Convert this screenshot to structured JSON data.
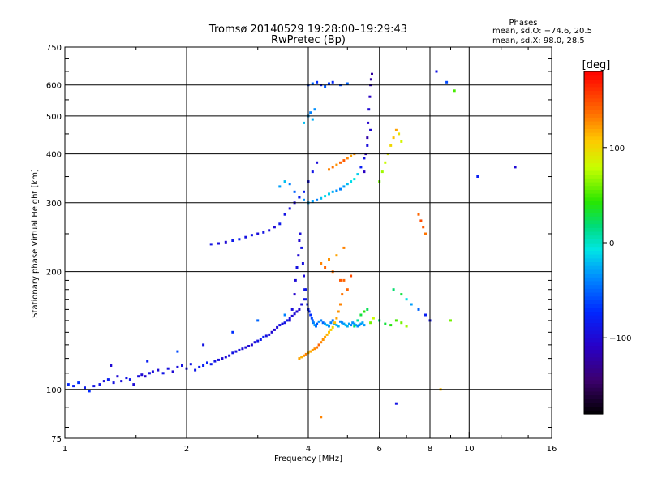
{
  "chart_data": {
    "type": "scatter",
    "title": "Tromsø 20140529 19:28:00–19:29:43",
    "subtitle": "RwPretec (Bp)",
    "stats": {
      "heading": "Phases",
      "line1": "mean, sd,O: −74.6, 20.5",
      "line2": "mean, sd,X:  98.0, 28.5"
    },
    "xlabel": "Frequency [MHz]",
    "ylabel": "Stationary phase Virtual Height [km]",
    "x_scale": "log",
    "y_scale": "log",
    "xlim": [
      1,
      16
    ],
    "ylim": [
      75,
      750
    ],
    "x_ticks": [
      1,
      2,
      4,
      6,
      8,
      10,
      16
    ],
    "x_tick_labels": [
      "1",
      "2",
      "4",
      "6",
      "8",
      "10",
      "16"
    ],
    "x_minor_ticks": [
      1.5,
      3,
      5,
      7,
      9,
      12,
      14
    ],
    "y_ticks": [
      75,
      100,
      200,
      300,
      400,
      500,
      600,
      750
    ],
    "y_tick_labels": [
      "75",
      "100",
      "200",
      "300",
      "400",
      "500",
      "600",
      "750"
    ],
    "grid": true,
    "colorbar": {
      "label": "[deg]",
      "range": [
        -180,
        180
      ],
      "ticks": [
        -100,
        0,
        100
      ],
      "tick_labels": [
        "−100",
        "0",
        "100"
      ],
      "colormap": "rainbow"
    },
    "series": [
      {
        "x": [
          1.02,
          1.05,
          1.08,
          1.12,
          1.15,
          1.18,
          1.22,
          1.25,
          1.28,
          1.32,
          1.35,
          1.38,
          1.42,
          1.45,
          1.48,
          1.52,
          1.55,
          1.58,
          1.62,
          1.65,
          1.7,
          1.75,
          1.8,
          1.85,
          1.9,
          1.95,
          2.0,
          2.05,
          2.1,
          2.15,
          2.2,
          2.25,
          2.3,
          2.35,
          2.4,
          2.45,
          2.5,
          2.55,
          2.6,
          2.65,
          2.7,
          2.75,
          2.8,
          2.85,
          2.9,
          2.95,
          3.0,
          3.05,
          3.1,
          3.15,
          3.2,
          3.25,
          3.3,
          3.35,
          3.4,
          3.45,
          3.5,
          3.55,
          3.6,
          3.65,
          3.7,
          3.75,
          3.8,
          3.85,
          3.9,
          3.95
        ],
        "y": [
          103,
          102,
          104,
          101,
          99,
          102,
          103,
          105,
          106,
          104,
          108,
          105,
          107,
          106,
          103,
          108,
          109,
          108,
          110,
          111,
          112,
          110,
          113,
          111,
          114,
          115,
          113,
          116,
          112,
          114,
          115,
          117,
          116,
          118,
          119,
          120,
          121,
          122,
          124,
          125,
          126,
          127,
          128,
          129,
          130,
          132,
          133,
          134,
          136,
          137,
          138,
          140,
          142,
          144,
          146,
          147,
          148,
          150,
          152,
          154,
          156,
          158,
          160,
          165,
          170,
          180
        ],
        "phase": [
          -75,
          -80,
          -70,
          -85,
          -72,
          -90,
          -88,
          -95,
          -80,
          -92,
          -100,
          -95,
          -90,
          -85,
          -98,
          -95,
          -100,
          -105,
          -92,
          -96,
          -98,
          -88,
          -94,
          -100,
          -95,
          -92,
          -90,
          -88,
          -86,
          -84,
          -80,
          -78,
          -85,
          -90,
          -95,
          -100,
          -98,
          -96,
          -90,
          -92,
          -94,
          -96,
          -98,
          -100,
          -102,
          -96,
          -90,
          -85,
          -80,
          -92,
          -95,
          -100,
          -105,
          -98,
          -94,
          -92,
          -90,
          -88,
          -96,
          -98,
          -100,
          -102,
          -104,
          -95,
          -90,
          -85
        ]
      },
      {
        "x": [
          3.6,
          3.65,
          3.7,
          3.72,
          3.75,
          3.78,
          3.8,
          3.82,
          3.85,
          3.88,
          3.9,
          3.92,
          3.95,
          3.98,
          4.0,
          4.02,
          4.05,
          4.08,
          4.1,
          4.12,
          4.15,
          4.18,
          4.2,
          4.25,
          4.3,
          4.35,
          4.4,
          4.45,
          4.5,
          4.55,
          4.6,
          4.65,
          4.7,
          4.75,
          4.8,
          4.85,
          4.9,
          4.95,
          5.0,
          5.05,
          5.1,
          5.15,
          5.2,
          5.25,
          5.3,
          5.35,
          5.4,
          5.45,
          5.5
        ],
        "y": [
          150,
          160,
          175,
          190,
          205,
          220,
          240,
          250,
          230,
          210,
          195,
          180,
          170,
          165,
          160,
          158,
          155,
          152,
          150,
          148,
          146,
          145,
          147,
          149,
          150,
          148,
          147,
          146,
          145,
          148,
          150,
          147,
          146,
          145,
          149,
          148,
          147,
          146,
          145,
          147,
          146,
          148,
          147,
          146,
          145,
          146,
          147,
          148,
          146
        ],
        "phase": [
          -100,
          -95,
          -105,
          -98,
          -92,
          -100,
          -102,
          -96,
          -90,
          -94,
          -98,
          -88,
          -85,
          -82,
          -80,
          -75,
          -70,
          -60,
          -50,
          -40,
          -30,
          -45,
          -55,
          -35,
          -40,
          -50,
          -30,
          -25,
          -35,
          -40,
          -45,
          -30,
          -20,
          -25,
          -35,
          -40,
          -30,
          -20,
          -25,
          -30,
          -40,
          -35,
          -30,
          -25,
          -35,
          -40,
          -30,
          -28,
          -32
        ]
      },
      {
        "x": [
          3.8,
          3.85,
          3.9,
          3.95,
          4.0,
          4.05,
          4.1,
          4.15,
          4.2,
          4.25,
          4.3,
          4.35,
          4.4,
          4.45,
          4.5,
          4.55,
          4.6,
          4.65,
          4.7,
          4.75,
          4.8,
          4.85,
          4.9
        ],
        "y": [
          120,
          121,
          122,
          123,
          124,
          125,
          126,
          127,
          128,
          130,
          132,
          134,
          136,
          138,
          140,
          142,
          144,
          148,
          152,
          158,
          165,
          175,
          190
        ],
        "phase": [
          120,
          115,
          125,
          130,
          110,
          118,
          122,
          128,
          135,
          140,
          130,
          125,
          120,
          115,
          110,
          105,
          100,
          110,
          120,
          125,
          130,
          135,
          140
        ]
      },
      {
        "x": [
          4.3,
          4.4,
          4.5,
          4.6,
          4.7,
          4.8,
          4.9,
          5.0,
          5.1
        ],
        "y": [
          210,
          205,
          215,
          200,
          220,
          190,
          230,
          180,
          195
        ],
        "phase": [
          130,
          140,
          125,
          135,
          120,
          145,
          130,
          140,
          150
        ]
      },
      {
        "x": [
          5.2,
          5.3,
          5.4,
          5.5,
          5.6,
          5.7,
          5.8,
          6.0,
          6.2,
          6.4,
          6.6,
          6.8,
          7.0
        ],
        "y": [
          145,
          150,
          155,
          158,
          160,
          148,
          152,
          150,
          147,
          146,
          150,
          148,
          145
        ],
        "phase": [
          20,
          10,
          30,
          40,
          25,
          60,
          80,
          20,
          30,
          40,
          50,
          60,
          70
        ]
      },
      {
        "x": [
          3.4,
          3.5,
          3.6,
          3.7,
          3.8,
          3.9,
          4.0,
          4.1,
          4.2,
          4.3,
          4.4,
          4.5,
          4.6,
          4.7,
          4.8,
          4.9,
          5.0,
          5.1,
          5.2,
          5.3,
          5.4,
          5.5,
          5.6,
          5.7
        ],
        "y": [
          330,
          340,
          335,
          320,
          310,
          305,
          300,
          302,
          305,
          308,
          312,
          316,
          320,
          322,
          325,
          330,
          335,
          340,
          345,
          355,
          370,
          390,
          420,
          460
        ],
        "phase": [
          -30,
          -20,
          -40,
          -50,
          -45,
          -35,
          -25,
          -30,
          -40,
          -20,
          -10,
          -15,
          -25,
          -35,
          -40,
          -30,
          -20,
          -10,
          -5,
          -15,
          -80,
          -90,
          -95,
          -100
        ]
      },
      {
        "x": [
          3.5,
          3.6,
          3.7,
          3.8,
          3.9,
          4.0,
          4.1,
          4.2
        ],
        "y": [
          280,
          290,
          300,
          310,
          320,
          340,
          360,
          380
        ],
        "phase": [
          -90,
          -95,
          -100,
          -85,
          -80,
          -92,
          -88,
          -96
        ]
      },
      {
        "x": [
          5.5,
          5.55,
          5.6,
          5.62,
          5.65,
          5.68,
          5.7,
          5.72,
          5.75
        ],
        "y": [
          360,
          400,
          440,
          480,
          520,
          560,
          600,
          620,
          640
        ],
        "phase": [
          -110,
          -115,
          -120,
          -105,
          -100,
          -110,
          -115,
          -120,
          -125
        ]
      },
      {
        "x": [
          4.5,
          4.6,
          4.7,
          4.8,
          4.9,
          5.0,
          5.1,
          5.2
        ],
        "y": [
          365,
          370,
          375,
          380,
          385,
          390,
          395,
          400
        ],
        "phase": [
          130,
          135,
          125,
          140,
          145,
          130,
          120,
          125
        ]
      },
      {
        "x": [
          6.0,
          6.1,
          6.2,
          6.3,
          6.4,
          6.5,
          6.6,
          6.7,
          6.8
        ],
        "y": [
          340,
          360,
          380,
          400,
          420,
          440,
          460,
          450,
          430
        ],
        "phase": [
          60,
          70,
          80,
          90,
          100,
          110,
          120,
          95,
          85
        ]
      },
      {
        "x": [
          4.0,
          4.1,
          4.2,
          4.3,
          4.4,
          4.5,
          4.6,
          4.8,
          5.0
        ],
        "y": [
          600,
          605,
          610,
          600,
          595,
          605,
          610,
          600,
          605
        ],
        "phase": [
          -60,
          -50,
          -70,
          -80,
          -55,
          -65,
          -75,
          -60,
          -50
        ]
      },
      {
        "x": [
          3.9,
          4.0,
          4.05,
          4.1,
          4.15
        ],
        "y": [
          480,
          500,
          510,
          490,
          520
        ],
        "phase": [
          -20,
          -30,
          -40,
          -25,
          -35
        ]
      },
      {
        "x": [
          2.3,
          2.4,
          2.5,
          2.6,
          2.7,
          2.8,
          2.9,
          3.0,
          3.1,
          3.2,
          3.3,
          3.4
        ],
        "y": [
          235,
          236,
          238,
          240,
          242,
          245,
          248,
          250,
          252,
          255,
          260,
          265
        ],
        "phase": [
          -90,
          -95,
          -100,
          -85,
          -80,
          -92,
          -88,
          -96,
          -90,
          -95,
          -100,
          -85
        ]
      },
      {
        "x": [
          6.5,
          6.8,
          7.0,
          7.2,
          7.5,
          7.8,
          8.0
        ],
        "y": [
          180,
          175,
          170,
          165,
          160,
          155,
          150
        ],
        "phase": [
          20,
          30,
          -10,
          -30,
          -50,
          -80,
          -90
        ]
      },
      {
        "x": [
          7.5,
          7.6,
          7.7,
          7.8
        ],
        "y": [
          280,
          270,
          260,
          250
        ],
        "phase": [
          140,
          150,
          145,
          135
        ]
      },
      {
        "x": [
          8.3,
          8.8,
          9.2,
          10.5,
          13.0
        ],
        "y": [
          650,
          610,
          580,
          350,
          370
        ],
        "phase": [
          -90,
          -60,
          50,
          -80,
          -100
        ]
      },
      {
        "x": [
          1.3,
          1.6,
          1.9,
          2.2,
          2.6,
          3.0,
          3.5,
          4.3,
          6.6,
          8.5,
          9.0
        ],
        "y": [
          115,
          118,
          125,
          130,
          140,
          150,
          155,
          85,
          92,
          100,
          150
        ],
        "phase": [
          -100,
          -80,
          -60,
          -90,
          -70,
          -50,
          -40,
          130,
          -90,
          110,
          60
        ]
      }
    ]
  }
}
